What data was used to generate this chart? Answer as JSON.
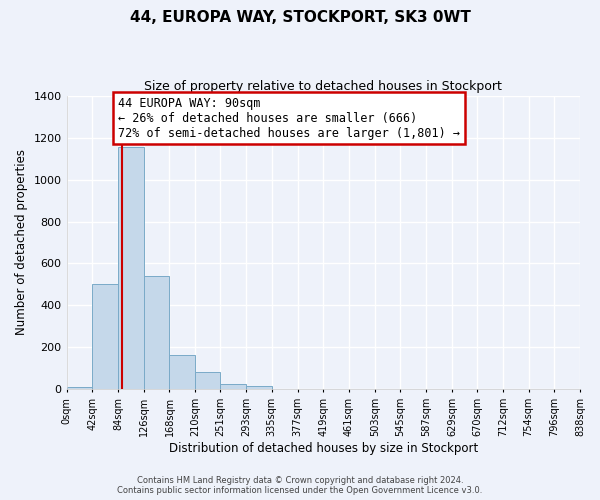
{
  "title": "44, EUROPA WAY, STOCKPORT, SK3 0WT",
  "subtitle": "Size of property relative to detached houses in Stockport",
  "xlabel": "Distribution of detached houses by size in Stockport",
  "ylabel": "Number of detached properties",
  "bar_edges": [
    0,
    42,
    84,
    126,
    168,
    210,
    251,
    293,
    335,
    377,
    419,
    461,
    503,
    545,
    587,
    629,
    670,
    712,
    754,
    796,
    838
  ],
  "bar_heights": [
    10,
    500,
    1155,
    540,
    165,
    82,
    28,
    18,
    0,
    0,
    0,
    0,
    0,
    0,
    0,
    0,
    0,
    0,
    0,
    0
  ],
  "bar_color": "#c5d8ea",
  "bar_edge_color": "#7aaac8",
  "property_line_x": 90,
  "property_line_color": "#cc0000",
  "ylim": [
    0,
    1400
  ],
  "yticks": [
    0,
    200,
    400,
    600,
    800,
    1000,
    1200,
    1400
  ],
  "annotation_line1": "44 EUROPA WAY: 90sqm",
  "annotation_line2": "← 26% of detached houses are smaller (666)",
  "annotation_line3": "72% of semi-detached houses are larger (1,801) →",
  "annotation_box_color": "white",
  "annotation_box_border": "#cc0000",
  "footnote1": "Contains HM Land Registry data © Crown copyright and database right 2024.",
  "footnote2": "Contains public sector information licensed under the Open Government Licence v3.0.",
  "bg_color": "#eef2fa",
  "grid_color": "white",
  "tick_labels": [
    "0sqm",
    "42sqm",
    "84sqm",
    "126sqm",
    "168sqm",
    "210sqm",
    "251sqm",
    "293sqm",
    "335sqm",
    "377sqm",
    "419sqm",
    "461sqm",
    "503sqm",
    "545sqm",
    "587sqm",
    "629sqm",
    "670sqm",
    "712sqm",
    "754sqm",
    "796sqm",
    "838sqm"
  ]
}
